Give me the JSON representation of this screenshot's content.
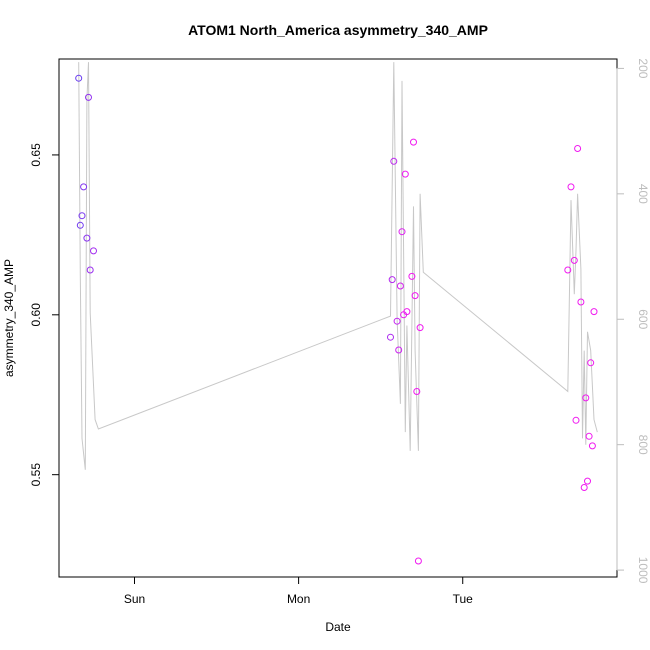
{
  "chart_data": {
    "type": "scatter",
    "title": "ATOM1 North_America asymmetry_340_AMP",
    "xlabel": "Date",
    "ylabel": "asymmetry_340_AMP",
    "x_axis_kind": "day",
    "x_ticks": [
      {
        "x": 1,
        "label": "Sun"
      },
      {
        "x": 2,
        "label": "Mon"
      },
      {
        "x": 3,
        "label": "Tue"
      }
    ],
    "xlim": [
      0.54,
      3.94
    ],
    "ylim": [
      0.518,
      0.68
    ],
    "y_ticks": [
      0.55,
      0.6,
      0.65
    ],
    "y2_ticks": [
      200,
      400,
      600,
      800,
      1000
    ],
    "y2lim": [
      1011,
      185
    ],
    "colors": {
      "point_start": "#6a3df0",
      "point_end": "#f019f0",
      "line": "#c8c8c8",
      "axis": "#000000",
      "y2_axis": "#bdbdbd"
    },
    "series": [
      {
        "type": "points",
        "x": [
          0.66,
          0.67,
          0.68,
          0.69,
          0.71,
          0.72,
          0.73,
          0.75,
          2.56,
          2.57,
          2.58,
          2.6,
          2.61,
          2.62,
          2.63,
          2.64,
          2.65,
          2.66,
          2.69,
          2.7,
          2.71,
          2.72,
          2.73,
          2.74,
          3.64,
          3.66,
          3.68,
          3.69,
          3.7,
          3.72,
          3.74,
          3.75,
          3.76,
          3.77,
          3.78,
          3.79,
          3.8
        ],
        "y": [
          0.674,
          0.628,
          0.631,
          0.64,
          0.624,
          0.668,
          0.614,
          0.62,
          0.593,
          0.611,
          0.648,
          0.598,
          0.589,
          0.609,
          0.626,
          0.6,
          0.644,
          0.601,
          0.612,
          0.654,
          0.606,
          0.576,
          0.523,
          0.596,
          0.614,
          0.64,
          0.617,
          0.567,
          0.652,
          0.604,
          0.546,
          0.574,
          0.548,
          0.562,
          0.585,
          0.559,
          0.601
        ]
      },
      {
        "type": "line",
        "axis": "right",
        "x": [
          0.66,
          0.67,
          0.68,
          0.7,
          0.71,
          0.72,
          0.73,
          0.76,
          0.78,
          2.56,
          2.58,
          2.6,
          2.62,
          2.63,
          2.65,
          2.66,
          2.68,
          2.7,
          2.71,
          2.73,
          2.74,
          2.76,
          3.64,
          3.66,
          3.68,
          3.69,
          3.7,
          3.72,
          3.73,
          3.74,
          3.75,
          3.76,
          3.78,
          3.8,
          3.82
        ],
        "y": [
          190,
          530,
          790,
          840,
          250,
          190,
          590,
          760,
          775,
          595,
          190,
          600,
          735,
          220,
          780,
          610,
          810,
          420,
          650,
          810,
          400,
          525,
          715,
          410,
          560,
          490,
          400,
          520,
          790,
          650,
          800,
          620,
          650,
          760,
          780
        ]
      }
    ]
  }
}
